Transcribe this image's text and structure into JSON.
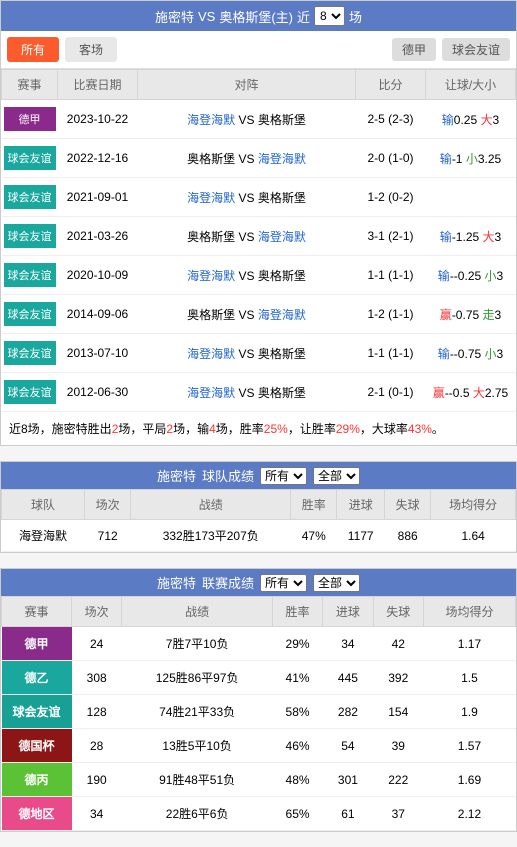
{
  "header": {
    "team1": "施密特",
    "vs": "VS",
    "team2": "奥格斯堡(主)",
    "near": "近",
    "games_select": "8",
    "games_unit": "场"
  },
  "filters": {
    "all": "所有",
    "away": "客场",
    "league": "德甲",
    "friendly": "球会友谊"
  },
  "h2h_headers": {
    "comp": "赛事",
    "date": "比赛日期",
    "match": "对阵",
    "score": "比分",
    "handicap": "让球/大小"
  },
  "h2h": [
    {
      "tag": "德甲",
      "tagcls": "tag-purple",
      "date": "2023-10-22",
      "t1": "海登海默",
      "t2": "奥格斯堡",
      "score": "2-5 (2-3)",
      "hres": "输",
      "hcls": "blue-txt",
      "hval": "0.25",
      "ores": "大",
      "ocls": "red-txt",
      "oval": "3"
    },
    {
      "tag": "球会友谊",
      "tagcls": "tag-teal",
      "date": "2022-12-16",
      "t1": "奥格斯堡",
      "t2": "海登海默",
      "score": "2-0 (1-0)",
      "hres": "输",
      "hcls": "blue-txt",
      "hval": "-1",
      "ores": "小",
      "ocls": "green-txt",
      "oval": "3.25",
      "swap": true
    },
    {
      "tag": "球会友谊",
      "tagcls": "tag-teal",
      "date": "2021-09-01",
      "t1": "海登海默",
      "t2": "奥格斯堡",
      "score": "1-2 (0-2)",
      "hres": "",
      "hcls": "",
      "hval": "",
      "ores": "",
      "ocls": "",
      "oval": ""
    },
    {
      "tag": "球会友谊",
      "tagcls": "tag-teal",
      "date": "2021-03-26",
      "t1": "奥格斯堡",
      "t2": "海登海默",
      "score": "3-1 (2-1)",
      "hres": "输",
      "hcls": "blue-txt",
      "hval": "-1.25",
      "ores": "大",
      "ocls": "red-txt",
      "oval": "3",
      "swap": true
    },
    {
      "tag": "球会友谊",
      "tagcls": "tag-teal",
      "date": "2020-10-09",
      "t1": "海登海默",
      "t2": "奥格斯堡",
      "score": "1-1 (1-1)",
      "hres": "输",
      "hcls": "blue-txt",
      "hval": "--0.25",
      "ores": "小",
      "ocls": "green-txt",
      "oval": "3"
    },
    {
      "tag": "球会友谊",
      "tagcls": "tag-teal",
      "date": "2014-09-06",
      "t1": "奥格斯堡",
      "t2": "海登海默",
      "score": "1-2 (1-1)",
      "hres": "赢",
      "hcls": "red-txt",
      "hval": "-0.75",
      "ores": "走",
      "ocls": "green-txt",
      "oval": "3",
      "swap": true
    },
    {
      "tag": "球会友谊",
      "tagcls": "tag-teal",
      "date": "2013-07-10",
      "t1": "海登海默",
      "t2": "奥格斯堡",
      "score": "1-1 (1-1)",
      "hres": "输",
      "hcls": "blue-txt",
      "hval": "--0.75",
      "ores": "小",
      "ocls": "green-txt",
      "oval": "3"
    },
    {
      "tag": "球会友谊",
      "tagcls": "tag-teal",
      "date": "2012-06-30",
      "t1": "海登海默",
      "t2": "奥格斯堡",
      "score": "2-1 (0-1)",
      "hres": "赢",
      "hcls": "red-txt",
      "hval": "--0.5",
      "ores": "大",
      "ocls": "red-txt",
      "oval": "2.75"
    }
  ],
  "summary": {
    "p1": "近8场，施密特胜出",
    "w": "2",
    "p2": "场，平局",
    "d": "2",
    "p3": "场，输",
    "l": "4",
    "p4": "场，胜率",
    "wr": "25%",
    "p5": "，让胜率",
    "hr": "29%",
    "p6": "，大球率",
    "or": "43%",
    "p7": "。"
  },
  "team_stats": {
    "title": "施密特",
    "subtitle": "球队成绩",
    "sel1": "所有",
    "sel2": "全部",
    "headers": {
      "team": "球队",
      "games": "场次",
      "record": "战绩",
      "wr": "胜率",
      "gf": "进球",
      "ga": "失球",
      "avg": "场均得分"
    },
    "row": {
      "team": "海登海默",
      "games": "712",
      "record": "332胜173平207负",
      "wr": "47%",
      "gf": "1177",
      "ga": "886",
      "avg": "1.64"
    }
  },
  "league_stats": {
    "title": "施密特",
    "subtitle": "联赛成绩",
    "sel1": "所有",
    "sel2": "全部",
    "headers": {
      "comp": "赛事",
      "games": "场次",
      "record": "战绩",
      "wr": "胜率",
      "gf": "进球",
      "ga": "失球",
      "avg": "场均得分"
    },
    "rows": [
      {
        "cls": "row-purple",
        "comp": "德甲",
        "games": "24",
        "record": "7胜7平10负",
        "wr": "29%",
        "gf": "34",
        "ga": "42",
        "avg": "1.17"
      },
      {
        "cls": "row-teal",
        "comp": "德乙",
        "games": "308",
        "record": "125胜86平97负",
        "wr": "41%",
        "gf": "445",
        "ga": "392",
        "avg": "1.5"
      },
      {
        "cls": "row-teal2",
        "comp": "球会友谊",
        "games": "128",
        "record": "74胜21平33负",
        "wr": "58%",
        "gf": "282",
        "ga": "154",
        "avg": "1.9"
      },
      {
        "cls": "row-darkred",
        "comp": "德国杯",
        "games": "28",
        "record": "13胜5平10负",
        "wr": "46%",
        "gf": "54",
        "ga": "39",
        "avg": "1.57"
      },
      {
        "cls": "row-green",
        "comp": "德丙",
        "games": "190",
        "record": "91胜48平51负",
        "wr": "48%",
        "gf": "301",
        "ga": "222",
        "avg": "1.69"
      },
      {
        "cls": "row-pink",
        "comp": "德地区",
        "games": "34",
        "record": "22胜6平6负",
        "wr": "65%",
        "gf": "61",
        "ga": "37",
        "avg": "2.12"
      }
    ]
  }
}
